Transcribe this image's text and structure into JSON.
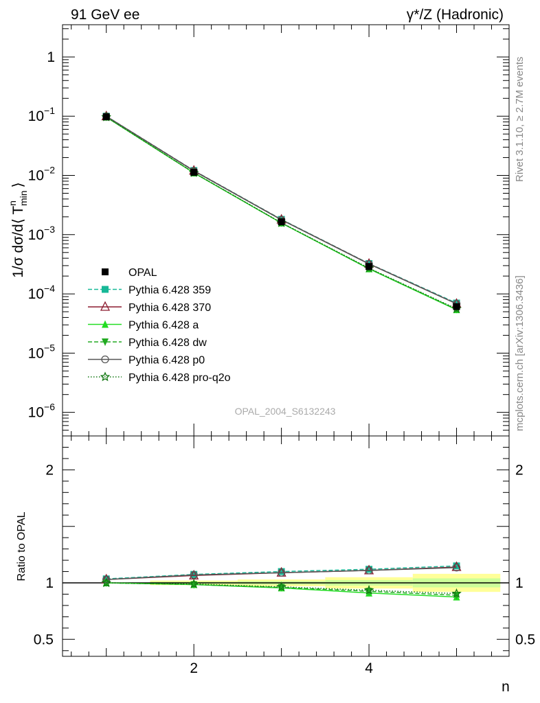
{
  "header": {
    "left": "91 GeV ee",
    "right_gamma": "γ",
    "right_rest": "*/Z (Hadronic)"
  },
  "side_labels": {
    "rivet": "Rivet 3.1.10, ≥ 2.7M events",
    "mcplots": "mcplots.cern.ch [arXiv:1306.3436]"
  },
  "watermark": "OPAL_2004_S6132243",
  "y_label_top": {
    "prefix": "1/σ dσ/d⟨ T",
    "sup": "n",
    "sub": "min",
    "suffix": "⟩"
  },
  "y_label_bottom": "Ratio to OPAL",
  "x_label": "n",
  "legend": [
    {
      "label": "OPAL"
    },
    {
      "label": "Pythia 6.428 359"
    },
    {
      "label": "Pythia 6.428 370"
    },
    {
      "label": "Pythia 6.428 a"
    },
    {
      "label": "Pythia 6.428 dw"
    },
    {
      "label": "Pythia 6.428 p0"
    },
    {
      "label": "Pythia 6.428 pro-q2o"
    }
  ],
  "chart_data": {
    "type": "line",
    "x": [
      1,
      2,
      3,
      4,
      5
    ],
    "xlim": [
      0.5,
      5.6
    ],
    "x_ticks": [
      "2",
      "4"
    ],
    "top_panel": {
      "log_y": true,
      "ylim": [
        4e-07,
        3.5
      ],
      "y_ticks": [
        {
          "base": "1",
          "exp": ""
        },
        {
          "base": "10",
          "exp": "−1"
        },
        {
          "base": "10",
          "exp": "−2"
        },
        {
          "base": "10",
          "exp": "−3"
        },
        {
          "base": "10",
          "exp": "−4"
        },
        {
          "base": "10",
          "exp": "−5"
        },
        {
          "base": "10",
          "exp": "−6"
        }
      ]
    },
    "ratio_panel": {
      "ylim": [
        0.35,
        2.3
      ],
      "y_ticks": [
        "2",
        "1",
        "0.5"
      ]
    },
    "reference": {
      "name": "OPAL",
      "values": [
        0.0975,
        0.0113,
        0.00165,
        0.00029,
        6.1e-05
      ]
    },
    "series": [
      {
        "name": "Pythia 6.428 359",
        "color": "#17b897",
        "dash": "6,3",
        "marker": "square",
        "values": [
          0.1,
          0.0121,
          0.00181,
          0.000325,
          7e-05
        ],
        "ratio": [
          1.035,
          1.075,
          1.1,
          1.12,
          1.15
        ]
      },
      {
        "name": "Pythia 6.428 370",
        "color": "#8b1a2e",
        "dash": "",
        "marker": "triangle-open",
        "values": [
          0.0995,
          0.012,
          0.00179,
          0.000322,
          6.8e-05
        ],
        "ratio": [
          1.03,
          1.065,
          1.09,
          1.11,
          1.14
        ]
      },
      {
        "name": "Pythia 6.428 a",
        "color": "#22dd22",
        "dash": "",
        "marker": "triangle",
        "values": [
          0.0965,
          0.011,
          0.00157,
          0.000265,
          5.4e-05
        ],
        "ratio": [
          1.0,
          0.985,
          0.955,
          0.91,
          0.875
        ]
      },
      {
        "name": "Pythia 6.428 dw",
        "color": "#22aa22",
        "dash": "6,3",
        "marker": "triangle-down",
        "values": [
          0.0965,
          0.0111,
          0.00158,
          0.000268,
          5.5e-05
        ],
        "ratio": [
          1.0,
          0.985,
          0.96,
          0.925,
          0.89
        ]
      },
      {
        "name": "Pythia 6.428 p0",
        "color": "#555555",
        "dash": "",
        "marker": "circle-open",
        "values": [
          0.0995,
          0.0119,
          0.00178,
          0.00032,
          6.8e-05
        ],
        "ratio": [
          1.03,
          1.07,
          1.09,
          1.11,
          1.135
        ]
      },
      {
        "name": "Pythia 6.428 pro-q2o",
        "color": "#117711",
        "dash": "1.5,2.5",
        "marker": "star-open",
        "values": [
          0.0968,
          0.0111,
          0.00159,
          0.000272,
          5.6e-05
        ],
        "ratio": [
          1.0,
          0.99,
          0.965,
          0.935,
          0.905
        ]
      }
    ]
  }
}
